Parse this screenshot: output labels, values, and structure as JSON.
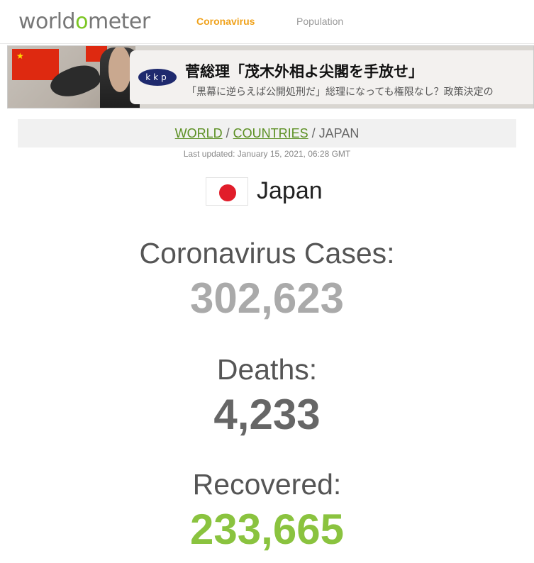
{
  "header": {
    "logo_prefix": "worldo",
    "logo_o": "",
    "logo_text": "worldometer",
    "nav": [
      {
        "label": "Coronavirus",
        "active": true
      },
      {
        "label": "Population",
        "active": false
      }
    ],
    "colors": {
      "accent_orange": "#f0a21b",
      "logo_green": "#7cc623"
    }
  },
  "ad": {
    "logo_text": "kkp",
    "title": "菅総理「茂木外相よ尖閣を手放せ」",
    "subtitle": "「黒幕に逆らえば公開処刑だ」総理になっても権限なし？政策決定の"
  },
  "breadcrumb": {
    "world": "WORLD",
    "sep1": " / ",
    "countries": "COUNTRIES",
    "sep2": " / ",
    "current": "JAPAN"
  },
  "last_updated": "Last updated: January 15, 2021, 06:28 GMT",
  "country": {
    "name": "Japan",
    "flag_icon": "japan-flag-icon"
  },
  "stats": {
    "cases_label": "Coronavirus Cases:",
    "cases_value": "302,623",
    "deaths_label": "Deaths:",
    "deaths_value": "4,233",
    "recovered_label": "Recovered:",
    "recovered_value": "233,665",
    "colors": {
      "cases": "#aaaaaa",
      "deaths": "#666666",
      "recovered": "#8ac33f"
    }
  }
}
